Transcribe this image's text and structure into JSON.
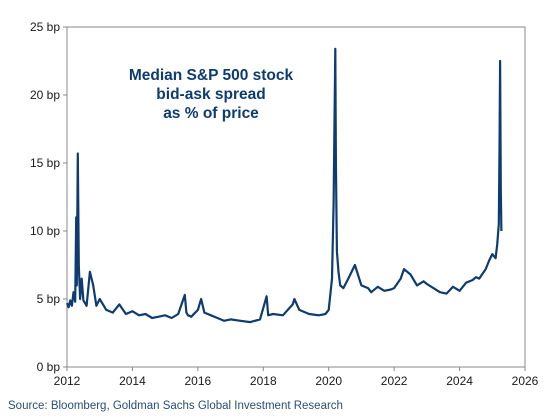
{
  "chart_data": {
    "type": "line",
    "title_lines": [
      "Median S&P 500 stock",
      "bid-ask spread",
      "as % of price"
    ],
    "y_tick_labels": [
      "0 bp",
      "5 bp",
      "10 bp",
      "15 bp",
      "20 bp",
      "25 bp"
    ],
    "y_ticks": [
      0,
      5,
      10,
      15,
      20,
      25
    ],
    "x_tick_labels": [
      "2012",
      "2014",
      "2016",
      "2018",
      "2020",
      "2022",
      "2024",
      "2026"
    ],
    "x_ticks": [
      2012,
      2014,
      2016,
      2018,
      2020,
      2022,
      2024,
      2026
    ],
    "xlim": [
      2012,
      2026
    ],
    "ylim": [
      0,
      25
    ],
    "grid": false,
    "series": [
      {
        "color": "#0e3b70",
        "x": [
          2012.0,
          2012.05,
          2012.1,
          2012.15,
          2012.2,
          2012.25,
          2012.28,
          2012.3,
          2012.33,
          2012.36,
          2012.4,
          2012.45,
          2012.5,
          2012.6,
          2012.7,
          2012.8,
          2012.9,
          2013.0,
          2013.2,
          2013.4,
          2013.6,
          2013.8,
          2014.0,
          2014.2,
          2014.4,
          2014.6,
          2014.8,
          2015.0,
          2015.2,
          2015.4,
          2015.6,
          2015.65,
          2015.7,
          2015.8,
          2016.0,
          2016.1,
          2016.2,
          2016.4,
          2016.6,
          2016.8,
          2017.0,
          2017.3,
          2017.6,
          2017.9,
          2018.1,
          2018.15,
          2018.3,
          2018.6,
          2018.9,
          2018.95,
          2019.1,
          2019.4,
          2019.7,
          2019.9,
          2020.0,
          2020.1,
          2020.15,
          2020.2,
          2020.22,
          2020.25,
          2020.3,
          2020.35,
          2020.45,
          2020.6,
          2020.8,
          2021.0,
          2021.2,
          2021.3,
          2021.5,
          2021.7,
          2021.9,
          2022.0,
          2022.2,
          2022.3,
          2022.5,
          2022.7,
          2022.9,
          2023.0,
          2023.2,
          2023.4,
          2023.6,
          2023.8,
          2024.0,
          2024.2,
          2024.4,
          2024.5,
          2024.6,
          2024.8,
          2024.9,
          2025.0,
          2025.1,
          2025.15,
          2025.2,
          2025.22,
          2025.24,
          2025.26,
          2025.28
        ],
        "y": [
          4.7,
          4.4,
          4.9,
          4.5,
          5.5,
          4.8,
          11.0,
          6.0,
          15.7,
          7.5,
          5.0,
          6.5,
          4.9,
          4.5,
          7.0,
          6.0,
          4.5,
          5.0,
          4.2,
          4.0,
          4.6,
          3.9,
          4.1,
          3.8,
          3.9,
          3.6,
          3.7,
          3.8,
          3.6,
          3.9,
          5.3,
          4.0,
          3.8,
          3.7,
          4.2,
          5.0,
          4.0,
          3.8,
          3.6,
          3.4,
          3.5,
          3.4,
          3.3,
          3.5,
          5.2,
          3.8,
          3.9,
          3.8,
          4.6,
          5.0,
          4.2,
          3.9,
          3.8,
          3.9,
          4.2,
          6.5,
          12.0,
          23.4,
          15.0,
          8.5,
          7.0,
          6.0,
          5.8,
          6.5,
          7.5,
          6.0,
          5.8,
          5.5,
          5.9,
          5.6,
          5.7,
          5.8,
          6.5,
          7.2,
          6.8,
          6.0,
          6.3,
          6.1,
          5.8,
          5.5,
          5.4,
          5.9,
          5.6,
          6.2,
          6.4,
          6.6,
          6.5,
          7.2,
          7.8,
          8.3,
          8.0,
          9.0,
          10.5,
          16.0,
          22.5,
          13.0,
          10.0
        ]
      }
    ]
  },
  "source_text": "Source: Bloomberg, Goldman Sachs Global Investment Research"
}
